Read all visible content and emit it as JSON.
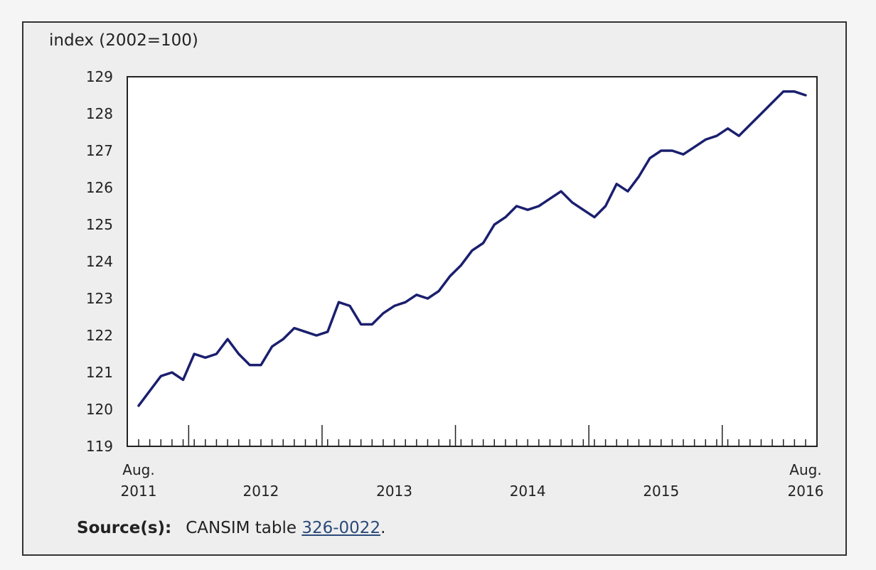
{
  "y_axis_title": "index (2002=100)",
  "source": {
    "label": "Source(s):",
    "text_before": "CANSIM table ",
    "link_text": "326-0022",
    "text_after": "."
  },
  "colors": {
    "line": "#1a1f6e",
    "frame_bg": "#eeeeee",
    "plot_bg": "#ffffff"
  },
  "chart_data": {
    "type": "line",
    "title": "",
    "ylabel": "index (2002=100)",
    "xlabel": "",
    "ylim": [
      119,
      129
    ],
    "yticks": [
      119,
      120,
      121,
      122,
      123,
      124,
      125,
      126,
      127,
      128,
      129
    ],
    "grid": false,
    "x_start": "2011-08",
    "x_end": "2016-08",
    "x_tick_labels": [
      {
        "date": "2011-08",
        "lines": [
          "Aug.",
          "2011"
        ]
      },
      {
        "date": "2012-07",
        "lines": [
          "2012"
        ]
      },
      {
        "date": "2013-07",
        "lines": [
          "2013"
        ]
      },
      {
        "date": "2014-07",
        "lines": [
          "2014"
        ]
      },
      {
        "date": "2015-07",
        "lines": [
          "2015"
        ]
      },
      {
        "date": "2016-08",
        "lines": [
          "Aug.",
          "2016"
        ]
      }
    ],
    "x_major_ticks": [
      "2012-01",
      "2013-01",
      "2014-01",
      "2015-01",
      "2016-01"
    ],
    "series": [
      {
        "x": [
          "2011-08",
          "2011-09",
          "2011-10",
          "2011-11",
          "2011-12",
          "2012-01",
          "2012-02",
          "2012-03",
          "2012-04",
          "2012-05",
          "2012-06",
          "2012-07",
          "2012-08",
          "2012-09",
          "2012-10",
          "2012-11",
          "2012-12",
          "2013-01",
          "2013-02",
          "2013-03",
          "2013-04",
          "2013-05",
          "2013-06",
          "2013-07",
          "2013-08",
          "2013-09",
          "2013-10",
          "2013-11",
          "2013-12",
          "2014-01",
          "2014-02",
          "2014-03",
          "2014-04",
          "2014-05",
          "2014-06",
          "2014-07",
          "2014-08",
          "2014-09",
          "2014-10",
          "2014-11",
          "2014-12",
          "2015-01",
          "2015-02",
          "2015-03",
          "2015-04",
          "2015-05",
          "2015-06",
          "2015-07",
          "2015-08",
          "2015-09",
          "2015-10",
          "2015-11",
          "2015-12",
          "2016-01",
          "2016-02",
          "2016-03",
          "2016-04",
          "2016-05",
          "2016-06",
          "2016-07",
          "2016-08"
        ],
        "values": [
          120.1,
          120.5,
          120.9,
          121.0,
          120.8,
          121.5,
          121.4,
          121.5,
          121.9,
          121.5,
          121.2,
          121.2,
          121.7,
          121.9,
          122.2,
          122.1,
          122.0,
          122.1,
          122.9,
          122.8,
          122.3,
          122.3,
          122.6,
          122.8,
          122.9,
          123.1,
          123.0,
          123.2,
          123.6,
          123.9,
          124.3,
          124.5,
          125.0,
          125.2,
          125.5,
          125.4,
          125.5,
          125.7,
          125.9,
          125.6,
          125.4,
          125.2,
          125.5,
          126.1,
          125.9,
          126.3,
          126.8,
          127.0,
          127.0,
          126.9,
          127.1,
          127.3,
          127.4,
          127.6,
          127.4,
          127.7,
          128.0,
          128.3,
          128.6,
          128.6,
          128.5
        ]
      }
    ]
  }
}
